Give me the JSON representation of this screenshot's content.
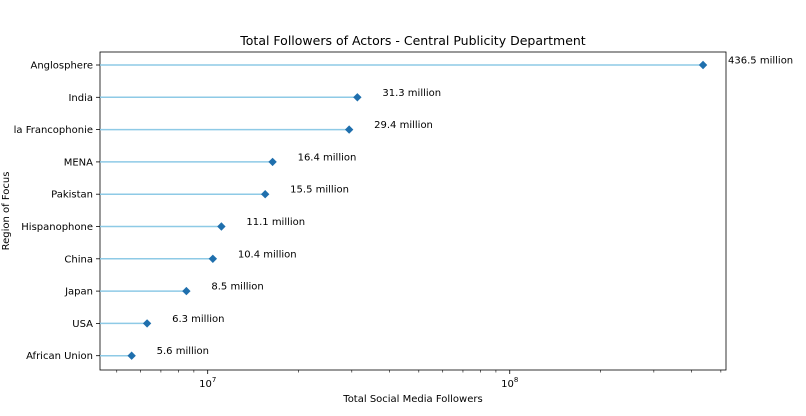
{
  "chart_data": {
    "type": "lollipop",
    "orientation": "horizontal",
    "title": "Total Followers of Actors - Central Publicity Department",
    "xlabel": "Total Social Media Followers",
    "ylabel": "Region of Focus",
    "xscale": "log",
    "xlim": [
      4400000,
      520000000
    ],
    "x_tick_labels": [
      {
        "value": 10000000,
        "base": "10",
        "exp": "7"
      },
      {
        "value": 100000000,
        "base": "10",
        "exp": "8"
      }
    ],
    "grid": false,
    "legend": "none",
    "colors": {
      "stem": "#8ecae6",
      "marker": "#1f6fad",
      "axis": "#000000"
    },
    "marker": "diamond",
    "categories": [
      "Anglosphere",
      "India",
      "la Francophonie",
      "MENA",
      "Pakistan",
      "Hispanophone",
      "China",
      "Japan",
      "USA",
      "African Union"
    ],
    "values": [
      436500000,
      31300000,
      29400000,
      16400000,
      15500000,
      11100000,
      10400000,
      8500000,
      6300000,
      5600000
    ],
    "value_labels": [
      "436.5 million",
      "31.3 million",
      "29.4 million",
      "16.4 million",
      "15.5 million",
      "11.1 million",
      "10.4 million",
      "8.5 million",
      "6.3 million",
      "5.6 million"
    ]
  }
}
